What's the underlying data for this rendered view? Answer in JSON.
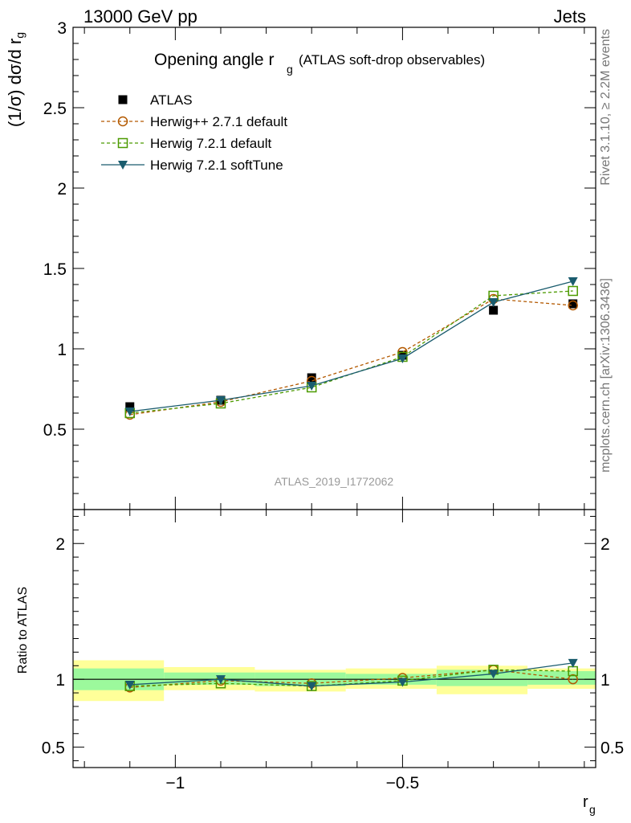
{
  "header": {
    "left": "13000 GeV pp",
    "right": "Jets"
  },
  "side": {
    "rivet": "Rivet 3.1.10, ≥ 2.2M events",
    "mcplots": "mcplots.cern.ch [arXiv:1306.3436]"
  },
  "watermark": "ATLAS_2019_I1772062",
  "chart_data": [
    {
      "type": "line",
      "title_main": "Opening angle r",
      "title_sub": "g",
      "title_suffix": "(ATLAS soft-drop observables)",
      "ylabel": "(1/σ) dσ/d r g",
      "xlabel": "r g",
      "xlim": [
        -1.225,
        -0.075
      ],
      "ylim": [
        0,
        3
      ],
      "y_ticks": [
        "0.5",
        "1",
        "1.5",
        "2",
        "2.5",
        "3"
      ],
      "y_tick_values": [
        0.5,
        1,
        1.5,
        2,
        2.5,
        3
      ],
      "x": [
        -1.1,
        -0.9,
        -0.7,
        -0.5,
        -0.3,
        -0.125
      ],
      "series": [
        {
          "name": "ATLAS",
          "values": [
            0.64,
            0.68,
            0.82,
            0.96,
            1.24,
            1.28
          ],
          "color": "#000000",
          "marker": "filled-square",
          "line": "none"
        },
        {
          "name": "Herwig++ 2.7.1 default",
          "values": [
            0.59,
            0.67,
            0.8,
            0.98,
            1.31,
            1.27
          ],
          "color": "#b35900",
          "marker": "open-circle",
          "line": "dashed"
        },
        {
          "name": "Herwig 7.2.1 default",
          "values": [
            0.6,
            0.66,
            0.76,
            0.95,
            1.33,
            1.36
          ],
          "color": "#4c9a00",
          "marker": "open-square",
          "line": "dashed"
        },
        {
          "name": "Herwig 7.2.1 softTune",
          "values": [
            0.61,
            0.68,
            0.77,
            0.94,
            1.29,
            1.42
          ],
          "color": "#1a5c6e",
          "marker": "filled-triangle-down",
          "line": "solid"
        }
      ],
      "legend": "top-left"
    },
    {
      "type": "line",
      "ylabel": "Ratio to ATLAS",
      "xlabel": "r g",
      "xlim": [
        -1.225,
        -0.075
      ],
      "ylim": [
        0.35,
        2.25
      ],
      "y_ticks": [
        "0.5",
        "1",
        "2"
      ],
      "y_tick_values": [
        0.5,
        1,
        2
      ],
      "x_ticks": [
        "−1",
        "−0.5"
      ],
      "x_tick_values": [
        -1,
        -0.5
      ],
      "bins": [
        {
          "lo": -1.225,
          "hi": -1.025,
          "stat": [
            0.92,
            1.08
          ],
          "total": [
            0.84,
            1.14
          ]
        },
        {
          "lo": -1.025,
          "hi": -0.825,
          "stat": [
            0.96,
            1.05
          ],
          "total": [
            0.92,
            1.09
          ]
        },
        {
          "lo": -0.825,
          "hi": -0.625,
          "stat": [
            0.95,
            1.05
          ],
          "total": [
            0.91,
            1.07
          ]
        },
        {
          "lo": -0.625,
          "hi": -0.425,
          "stat": [
            0.96,
            1.04
          ],
          "total": [
            0.93,
            1.08
          ]
        },
        {
          "lo": -0.425,
          "hi": -0.225,
          "stat": [
            0.95,
            1.07
          ],
          "total": [
            0.89,
            1.1
          ]
        },
        {
          "lo": -0.225,
          "hi": -0.075,
          "stat": [
            0.96,
            1.06
          ],
          "total": [
            0.93,
            1.08
          ]
        }
      ],
      "x": [
        -1.1,
        -0.9,
        -0.7,
        -0.5,
        -0.3,
        -0.125
      ],
      "series": [
        {
          "name": "Herwig++ 2.7.1 default",
          "values": [
            0.94,
            0.99,
            0.97,
            1.01,
            1.07,
            1.0
          ],
          "color": "#b35900",
          "marker": "open-circle",
          "line": "dashed"
        },
        {
          "name": "Herwig 7.2.1 default",
          "values": [
            0.95,
            0.97,
            0.95,
            0.99,
            1.07,
            1.06
          ],
          "color": "#4c9a00",
          "marker": "open-square",
          "line": "dashed"
        },
        {
          "name": "Herwig 7.2.1 softTune",
          "values": [
            0.96,
            1.0,
            0.95,
            0.98,
            1.04,
            1.12
          ],
          "color": "#1a5c6e",
          "marker": "filled-triangle-down",
          "line": "solid"
        }
      ],
      "colors": {
        "stat_band": "#9cf99c",
        "total_band": "#ffff99"
      }
    }
  ]
}
